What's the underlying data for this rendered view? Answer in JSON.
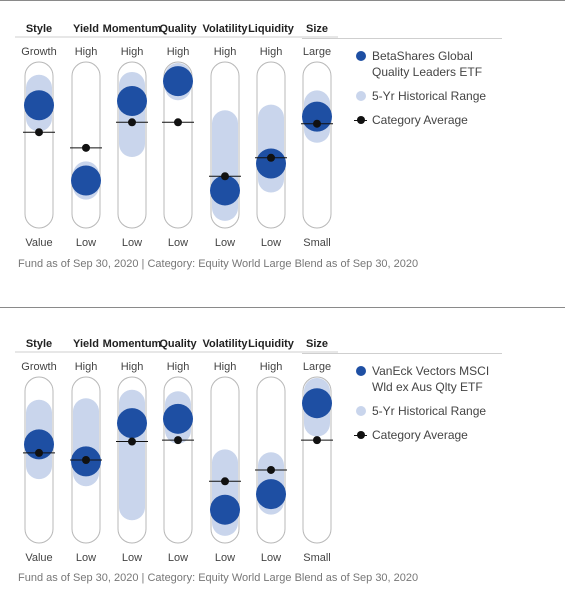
{
  "footnote": "Fund as of Sep 30, 2020 | Category: Equity World Large Blend as of Sep 30, 2020",
  "colors": {
    "fund": "#1e4fa3",
    "range": "#c9d5ec",
    "average": "#111111",
    "track": "#b8b8b8"
  },
  "legend": {
    "range_label": "5-Yr Historical Range",
    "average_label": "Category Average"
  },
  "chart_data": [
    {
      "type": "factor-profile",
      "fund_name": [
        "BetaShares Global",
        "Quality Leaders ETF"
      ],
      "factors": [
        {
          "name": "Style",
          "top": "Growth",
          "bottom": "Value",
          "fund": 78,
          "average": 59,
          "range": [
            68,
            91
          ]
        },
        {
          "name": "Yield",
          "top": "High",
          "bottom": "Low",
          "fund": 25,
          "average": 48,
          "range": [
            20,
            30
          ]
        },
        {
          "name": "Momentum",
          "top": "High",
          "bottom": "Low",
          "fund": 81,
          "average": 66,
          "range": [
            50,
            93
          ]
        },
        {
          "name": "Quality",
          "top": "High",
          "bottom": "Low",
          "fund": 95,
          "average": 66,
          "range": [
            90,
            100
          ]
        },
        {
          "name": "Volatility",
          "top": "High",
          "bottom": "Low",
          "fund": 18,
          "average": 28,
          "range": [
            5,
            66
          ]
        },
        {
          "name": "Liquidity",
          "top": "High",
          "bottom": "Low",
          "fund": 37,
          "average": 41,
          "range": [
            25,
            70
          ]
        },
        {
          "name": "Size",
          "top": "Large",
          "bottom": "Small",
          "fund": 70,
          "average": 65,
          "range": [
            60,
            80
          ]
        }
      ]
    },
    {
      "type": "factor-profile",
      "fund_name": [
        "VanEck Vectors MSCI",
        "Wld ex Aus Qlty ETF"
      ],
      "factors": [
        {
          "name": "Style",
          "top": "Growth",
          "bottom": "Value",
          "fund": 61,
          "average": 55,
          "range": [
            45,
            84
          ]
        },
        {
          "name": "Yield",
          "top": "High",
          "bottom": "Low",
          "fund": 49,
          "average": 50,
          "range": [
            40,
            85
          ]
        },
        {
          "name": "Momentum",
          "top": "High",
          "bottom": "Low",
          "fund": 76,
          "average": 63,
          "range": [
            16,
            91
          ]
        },
        {
          "name": "Quality",
          "top": "High",
          "bottom": "Low",
          "fund": 79,
          "average": 64,
          "range": [
            70,
            90
          ]
        },
        {
          "name": "Volatility",
          "top": "High",
          "bottom": "Low",
          "fund": 15,
          "average": 35,
          "range": [
            5,
            49
          ]
        },
        {
          "name": "Liquidity",
          "top": "High",
          "bottom": "Low",
          "fund": 26,
          "average": 43,
          "range": [
            20,
            47
          ]
        },
        {
          "name": "Size",
          "top": "Large",
          "bottom": "Small",
          "fund": 90,
          "average": 64,
          "range": [
            75,
            100
          ]
        }
      ]
    }
  ]
}
